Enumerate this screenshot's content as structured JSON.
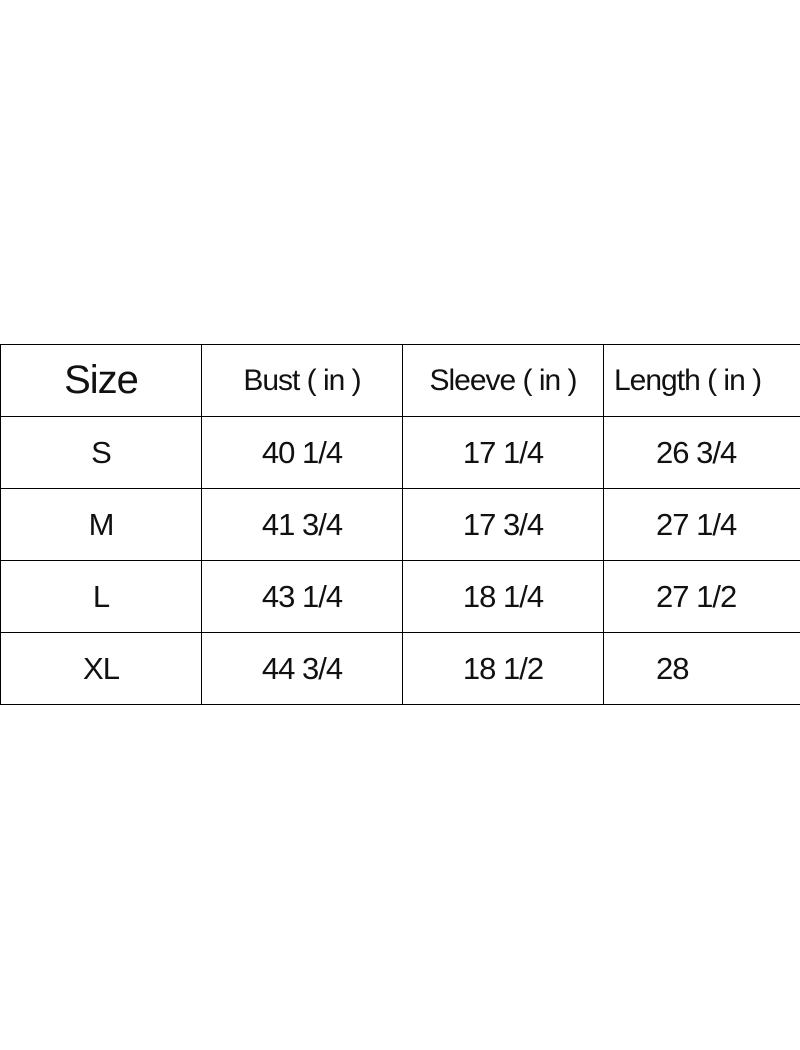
{
  "table": {
    "header": [
      "Size",
      "Bust ( in )",
      "Sleeve ( in )",
      "Length ( in )"
    ],
    "rows": [
      [
        "S",
        "40 1/4",
        "17 1/4",
        "26 3/4"
      ],
      [
        "M",
        "41 3/4",
        "17 3/4",
        "27 1/4"
      ],
      [
        "L",
        "43 1/4",
        "18 1/4",
        "27 1/2"
      ],
      [
        "XL",
        "44 3/4",
        "18 1/2",
        "28"
      ]
    ]
  }
}
